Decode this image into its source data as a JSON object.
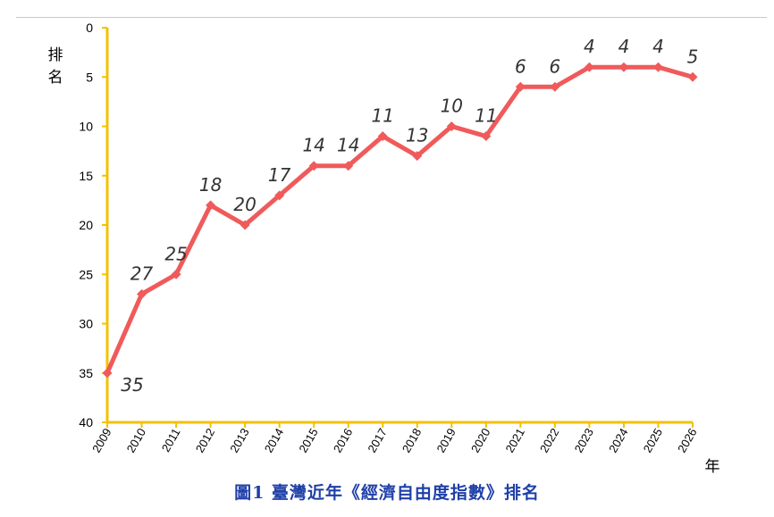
{
  "chart_data": {
    "type": "line",
    "title": "",
    "ylabel": "排名",
    "xlabel": "年",
    "x": [
      "2009",
      "2010",
      "2011",
      "2012",
      "2013",
      "2014",
      "2015",
      "2016",
      "2017",
      "2018",
      "2019",
      "2020",
      "2021",
      "2022",
      "2023",
      "2024",
      "2025",
      "2026"
    ],
    "series": [
      {
        "values": [
          35,
          27,
          25,
          18,
          20,
          17,
          14,
          14,
          11,
          13,
          10,
          11,
          6,
          6,
          4,
          4,
          4,
          5
        ]
      }
    ],
    "ylim": [
      0,
      40
    ],
    "y_inverted": true,
    "yticks": [
      0,
      5,
      10,
      15,
      20,
      25,
      30,
      35,
      40
    ],
    "grid": false,
    "line_color": "#f05a5b",
    "axis_color": "#f2c200"
  },
  "caption": "圖1 臺灣近年《經濟自由度指數》排名"
}
